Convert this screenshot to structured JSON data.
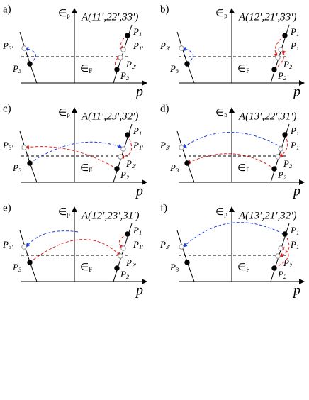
{
  "panels": [
    {
      "label": "a)",
      "title": "A(11′,22′,33′)"
    },
    {
      "label": "b)",
      "title": "A(12′,21′,33′)"
    },
    {
      "label": "c)",
      "title": "A(11′,23′,32′)"
    },
    {
      "label": "d)",
      "title": "A(13′,22′,31′)"
    },
    {
      "label": "e)",
      "title": "A(12′,23′,31′)"
    },
    {
      "label": "f)",
      "title": "A(13′,21′,32′)"
    }
  ],
  "energy_symbol": "∈",
  "energy_axis_sub": "p",
  "fermi_sub": "F",
  "momentum_label": "p",
  "point_symbol": "P",
  "point_subscripts": [
    "1",
    "1′",
    "2",
    "2′",
    "3",
    "3′"
  ]
}
